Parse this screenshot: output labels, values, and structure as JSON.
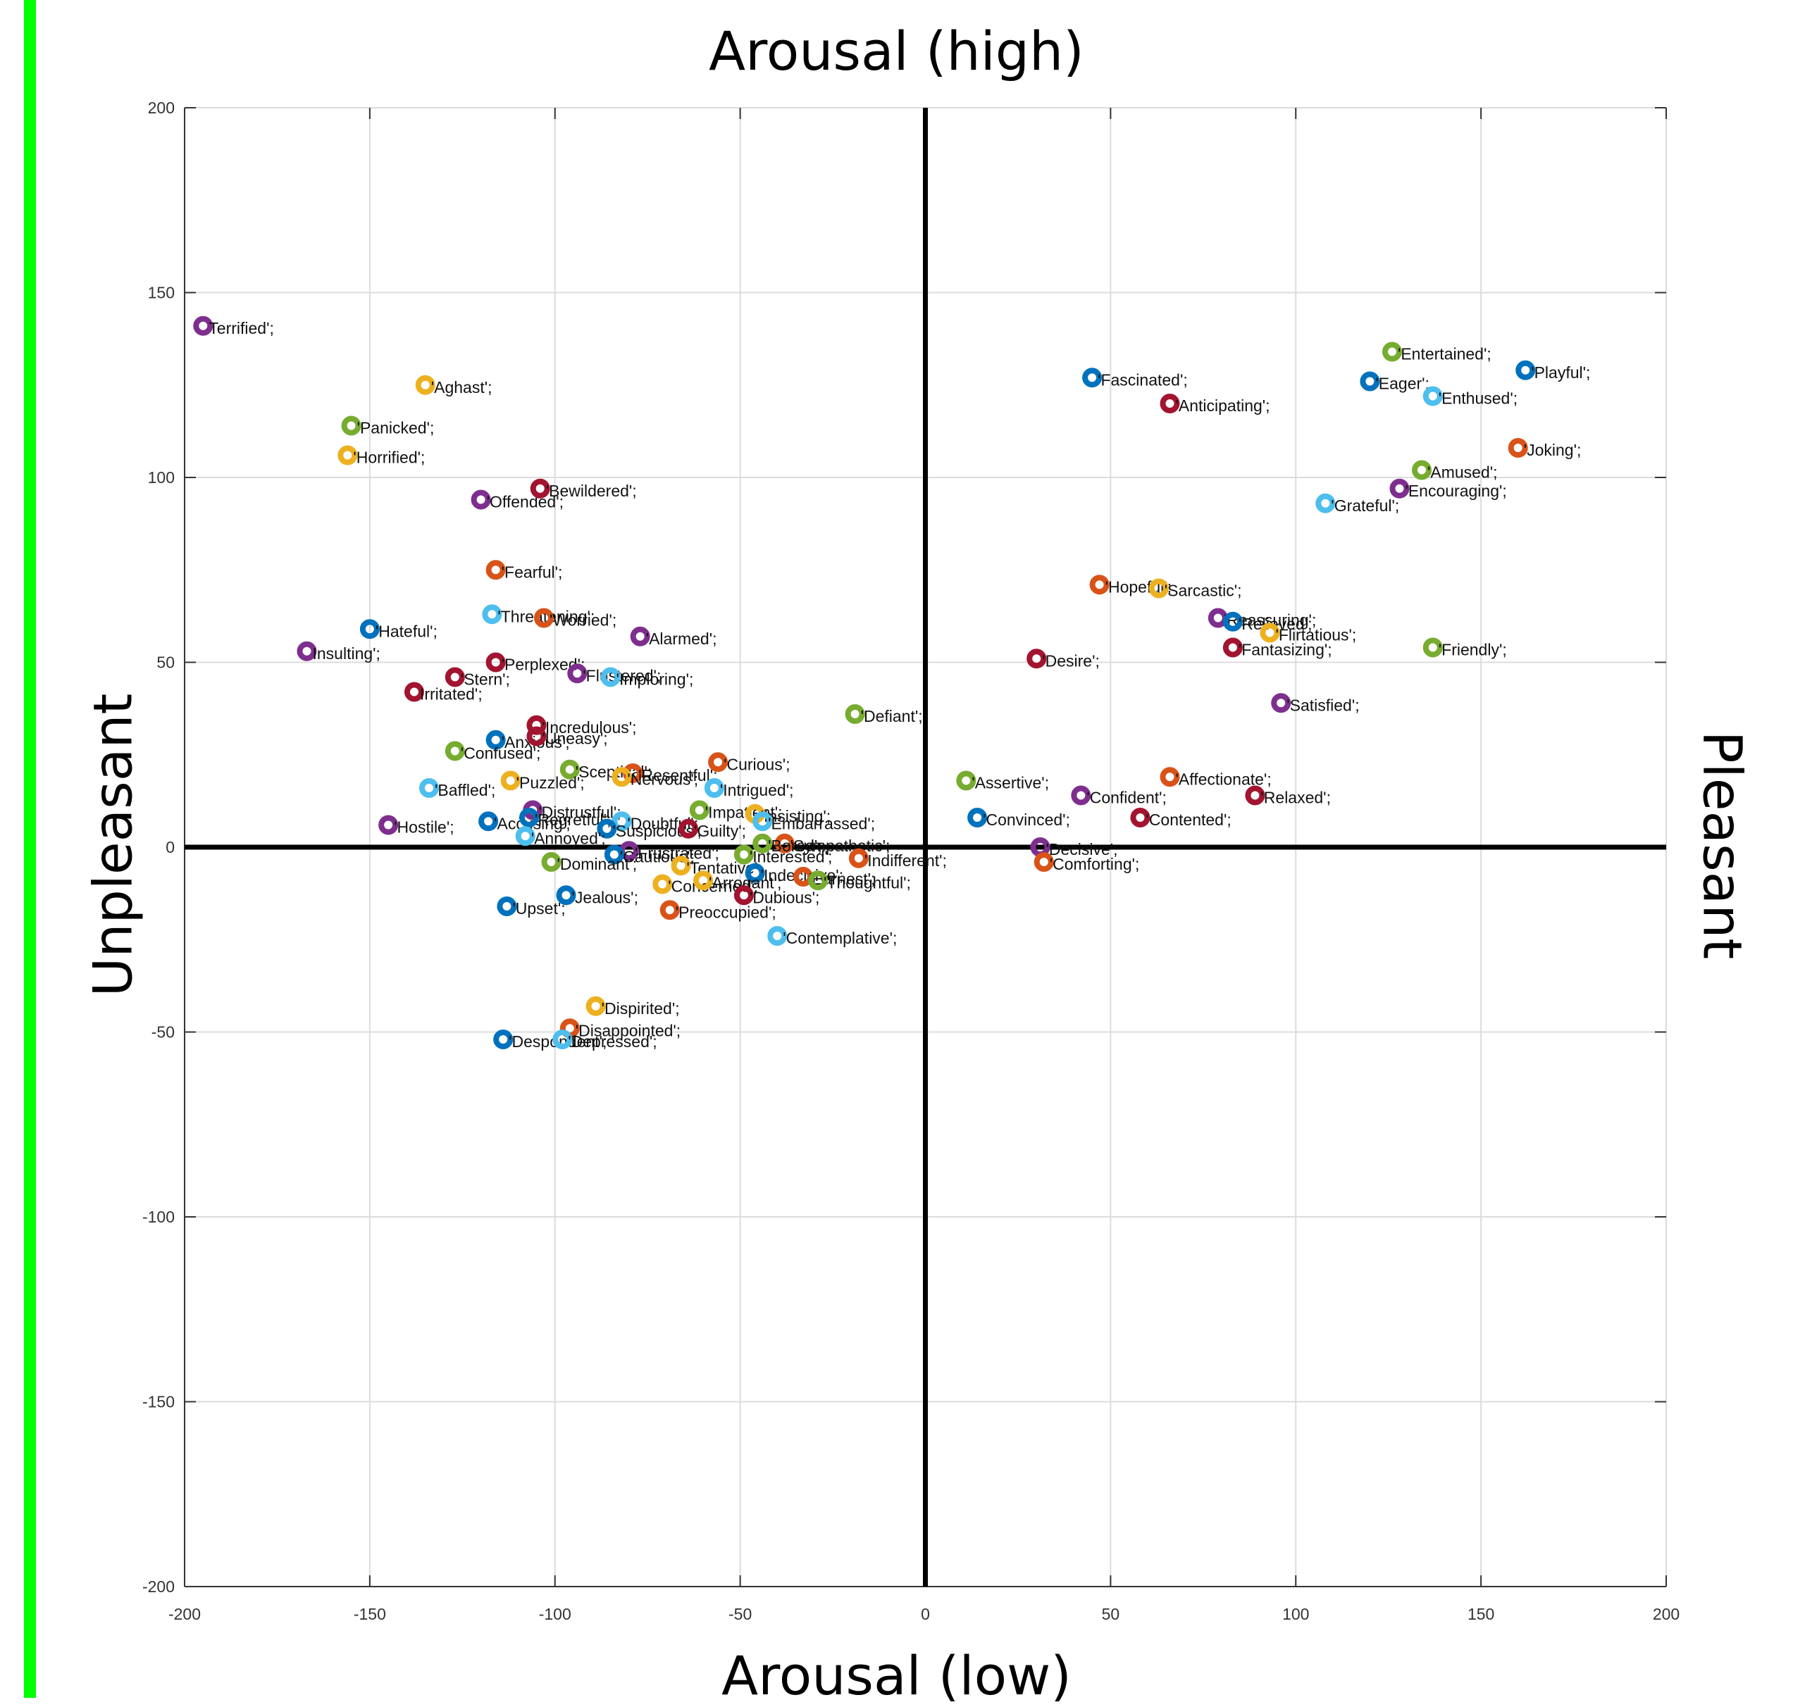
{
  "colors": {
    "left_bar": "#00ff00",
    "grid": "#dcdcdc",
    "axis": "#000000",
    "palette": [
      "#0072bd",
      "#d95319",
      "#edb120",
      "#7e2f8e",
      "#77ac30",
      "#4dbeee",
      "#a2142f"
    ]
  },
  "chart_data": {
    "type": "scatter",
    "top_label": "Arousal (high)",
    "xlabel": "Arousal (low)",
    "ylabel": "Unpleasant",
    "right_label": "Pleasant",
    "xlim": [
      -200,
      200
    ],
    "ylim": [
      -200,
      200
    ],
    "xticks": [
      -200,
      -150,
      -100,
      -50,
      0,
      50,
      100,
      150,
      200
    ],
    "yticks": [
      -200,
      -150,
      -100,
      -50,
      0,
      50,
      100,
      150,
      200
    ],
    "grid": true,
    "points": [
      {
        "label": "Terrified';",
        "x": -195,
        "y": 141,
        "color": "#7e2f8e"
      },
      {
        "label": "'Aghast';",
        "x": -135,
        "y": 125,
        "color": "#edb120"
      },
      {
        "label": "'Panicked';",
        "x": -155,
        "y": 114,
        "color": "#77ac30"
      },
      {
        "label": "'Horrified';",
        "x": -156,
        "y": 106,
        "color": "#edb120"
      },
      {
        "label": "'Offended';",
        "x": -120,
        "y": 94,
        "color": "#7e2f8e"
      },
      {
        "label": "'Bewildered';",
        "x": -104,
        "y": 97,
        "color": "#a2142f"
      },
      {
        "label": "'Fearful';",
        "x": -116,
        "y": 75,
        "color": "#d95319"
      },
      {
        "label": "'Threatening';",
        "x": -117,
        "y": 63,
        "color": "#4dbeee"
      },
      {
        "label": "'Worried';",
        "x": -103,
        "y": 62,
        "color": "#d95319"
      },
      {
        "label": "'Hateful';",
        "x": -150,
        "y": 59,
        "color": "#0072bd"
      },
      {
        "label": "'Alarmed';",
        "x": -77,
        "y": 57,
        "color": "#7e2f8e"
      },
      {
        "label": "Insulting';",
        "x": -167,
        "y": 53,
        "color": "#7e2f8e"
      },
      {
        "label": "'Perplexed';",
        "x": -116,
        "y": 50,
        "color": "#a2142f"
      },
      {
        "label": "'Stern';",
        "x": -127,
        "y": 46,
        "color": "#a2142f"
      },
      {
        "label": "'Flustered';",
        "x": -94,
        "y": 47,
        "color": "#7e2f8e"
      },
      {
        "label": "'Imploring';",
        "x": -85,
        "y": 46,
        "color": "#4dbeee"
      },
      {
        "label": "Irritated';",
        "x": -138,
        "y": 42,
        "color": "#a2142f"
      },
      {
        "label": "'Incredulous';",
        "x": -105,
        "y": 33,
        "color": "#a2142f"
      },
      {
        "label": "'Anxious';",
        "x": -116,
        "y": 29,
        "color": "#0072bd"
      },
      {
        "label": "'Uneasy';",
        "x": -105,
        "y": 30,
        "color": "#a2142f"
      },
      {
        "label": "'Confused';",
        "x": -127,
        "y": 26,
        "color": "#77ac30"
      },
      {
        "label": "'Sceptical';",
        "x": -96,
        "y": 21,
        "color": "#77ac30"
      },
      {
        "label": "'Resentful';",
        "x": -79,
        "y": 20,
        "color": "#d95319"
      },
      {
        "label": "'Nervous';",
        "x": -82,
        "y": 19,
        "color": "#edb120"
      },
      {
        "label": "'Curious';",
        "x": -56,
        "y": 23,
        "color": "#d95319"
      },
      {
        "label": "'Puzzled';",
        "x": -112,
        "y": 18,
        "color": "#edb120"
      },
      {
        "label": "'Baffled';",
        "x": -134,
        "y": 16,
        "color": "#4dbeee"
      },
      {
        "label": "'Intrigued';",
        "x": -57,
        "y": 16,
        "color": "#4dbeee"
      },
      {
        "label": "'Hostile';",
        "x": -145,
        "y": 6,
        "color": "#7e2f8e"
      },
      {
        "label": "'Accusing';",
        "x": -118,
        "y": 7,
        "color": "#0072bd"
      },
      {
        "label": "'Distrustful';",
        "x": -106,
        "y": 10,
        "color": "#7e2f8e"
      },
      {
        "label": "'Regretful';",
        "x": -107,
        "y": 8,
        "color": "#0072bd"
      },
      {
        "label": "'Doubtful';",
        "x": -82,
        "y": 7,
        "color": "#4dbeee"
      },
      {
        "label": "'Impatient';",
        "x": -61,
        "y": 10,
        "color": "#77ac30"
      },
      {
        "label": "'Insisting';",
        "x": -46,
        "y": 9,
        "color": "#edb120"
      },
      {
        "label": "'Embarrassed';",
        "x": -44,
        "y": 7,
        "color": "#4dbeee"
      },
      {
        "label": "'Suspicious';",
        "x": -86,
        "y": 5,
        "color": "#0072bd"
      },
      {
        "label": "'Guilty';",
        "x": -64,
        "y": 5,
        "color": "#a2142f"
      },
      {
        "label": "'Annoyed';",
        "x": -108,
        "y": 3,
        "color": "#4dbeee"
      },
      {
        "label": "'Sympathetic';",
        "x": -38,
        "y": 1,
        "color": "#d95319"
      },
      {
        "label": "'Bored';",
        "x": -44,
        "y": 1,
        "color": "#77ac30"
      },
      {
        "label": "'Frustrated';",
        "x": -80,
        "y": -1,
        "color": "#7e2f8e"
      },
      {
        "label": "'Cautious';",
        "x": -84,
        "y": -2,
        "color": "#0072bd"
      },
      {
        "label": "'Interested';",
        "x": -49,
        "y": -2,
        "color": "#77ac30"
      },
      {
        "label": "'Dominant';",
        "x": -101,
        "y": -4,
        "color": "#77ac30"
      },
      {
        "label": "'Tentative';",
        "x": -66,
        "y": -5,
        "color": "#edb120"
      },
      {
        "label": "'Indecisive';",
        "x": -46,
        "y": -7,
        "color": "#0072bd"
      },
      {
        "label": "'Earnest';",
        "x": -33,
        "y": -8,
        "color": "#d95319"
      },
      {
        "label": "'Thoughtful';",
        "x": -29,
        "y": -9,
        "color": "#77ac30"
      },
      {
        "label": "'Concerned';",
        "x": -71,
        "y": -10,
        "color": "#edb120"
      },
      {
        "label": "'Arrogant';",
        "x": -60,
        "y": -9,
        "color": "#edb120"
      },
      {
        "label": "'Indifferent';",
        "x": -18,
        "y": -3,
        "color": "#d95319"
      },
      {
        "label": "'Jealous';",
        "x": -97,
        "y": -13,
        "color": "#0072bd"
      },
      {
        "label": "'Dubious';",
        "x": -49,
        "y": -13,
        "color": "#a2142f"
      },
      {
        "label": "'Upset';",
        "x": -113,
        "y": -16,
        "color": "#0072bd"
      },
      {
        "label": "'Preoccupied';",
        "x": -69,
        "y": -17,
        "color": "#d95319"
      },
      {
        "label": "'Contemplative';",
        "x": -40,
        "y": -24,
        "color": "#4dbeee"
      },
      {
        "label": "'Dispirited';",
        "x": -89,
        "y": -43,
        "color": "#edb120"
      },
      {
        "label": "'Disappointed';",
        "x": -96,
        "y": -49,
        "color": "#d95319"
      },
      {
        "label": "'Despondent';",
        "x": -114,
        "y": -52,
        "color": "#0072bd"
      },
      {
        "label": "'Depressed';",
        "x": -98,
        "y": -52,
        "color": "#4dbeee"
      },
      {
        "label": "'Fascinated';",
        "x": 45,
        "y": 127,
        "color": "#0072bd"
      },
      {
        "label": "'Anticipating';",
        "x": 66,
        "y": 120,
        "color": "#a2142f"
      },
      {
        "label": "'Entertained';",
        "x": 126,
        "y": 134,
        "color": "#77ac30"
      },
      {
        "label": "'Eager';",
        "x": 120,
        "y": 126,
        "color": "#0072bd"
      },
      {
        "label": "'Playful';",
        "x": 162,
        "y": 129,
        "color": "#0072bd"
      },
      {
        "label": "'Enthused';",
        "x": 137,
        "y": 122,
        "color": "#4dbeee"
      },
      {
        "label": "'Joking';",
        "x": 160,
        "y": 108,
        "color": "#d95319"
      },
      {
        "label": "'Amused';",
        "x": 134,
        "y": 102,
        "color": "#77ac30"
      },
      {
        "label": "'Encouraging';",
        "x": 128,
        "y": 97,
        "color": "#7e2f8e"
      },
      {
        "label": "'Grateful';",
        "x": 108,
        "y": 93,
        "color": "#4dbeee"
      },
      {
        "label": "'Hopeful';",
        "x": 47,
        "y": 71,
        "color": "#d95319"
      },
      {
        "label": "'Sarcastic';",
        "x": 63,
        "y": 70,
        "color": "#edb120"
      },
      {
        "label": "'Reassuring';",
        "x": 79,
        "y": 62,
        "color": "#7e2f8e"
      },
      {
        "label": "'Relieved';",
        "x": 83,
        "y": 61,
        "color": "#0072bd"
      },
      {
        "label": "'Flirtatious';",
        "x": 93,
        "y": 58,
        "color": "#edb120"
      },
      {
        "label": "'Fantasizing';",
        "x": 83,
        "y": 54,
        "color": "#a2142f"
      },
      {
        "label": "'Friendly';",
        "x": 137,
        "y": 54,
        "color": "#77ac30"
      },
      {
        "label": "'Desire';",
        "x": 30,
        "y": 51,
        "color": "#a2142f"
      },
      {
        "label": "'Satisfied';",
        "x": 96,
        "y": 39,
        "color": "#7e2f8e"
      },
      {
        "label": "'Defiant';",
        "x": -19,
        "y": 36,
        "color": "#77ac30"
      },
      {
        "label": "'Assertive';",
        "x": 11,
        "y": 18,
        "color": "#77ac30"
      },
      {
        "label": "'Affectionate';",
        "x": 66,
        "y": 19,
        "color": "#d95319"
      },
      {
        "label": "'Confident';",
        "x": 42,
        "y": 14,
        "color": "#7e2f8e"
      },
      {
        "label": "'Relaxed';",
        "x": 89,
        "y": 14,
        "color": "#a2142f"
      },
      {
        "label": "'Convinced';",
        "x": 14,
        "y": 8,
        "color": "#0072bd"
      },
      {
        "label": "'Contented';",
        "x": 58,
        "y": 8,
        "color": "#a2142f"
      },
      {
        "label": "'Decisive';",
        "x": 31,
        "y": 0,
        "color": "#7e2f8e"
      },
      {
        "label": "'Comforting';",
        "x": 32,
        "y": -4,
        "color": "#d95319"
      }
    ]
  }
}
